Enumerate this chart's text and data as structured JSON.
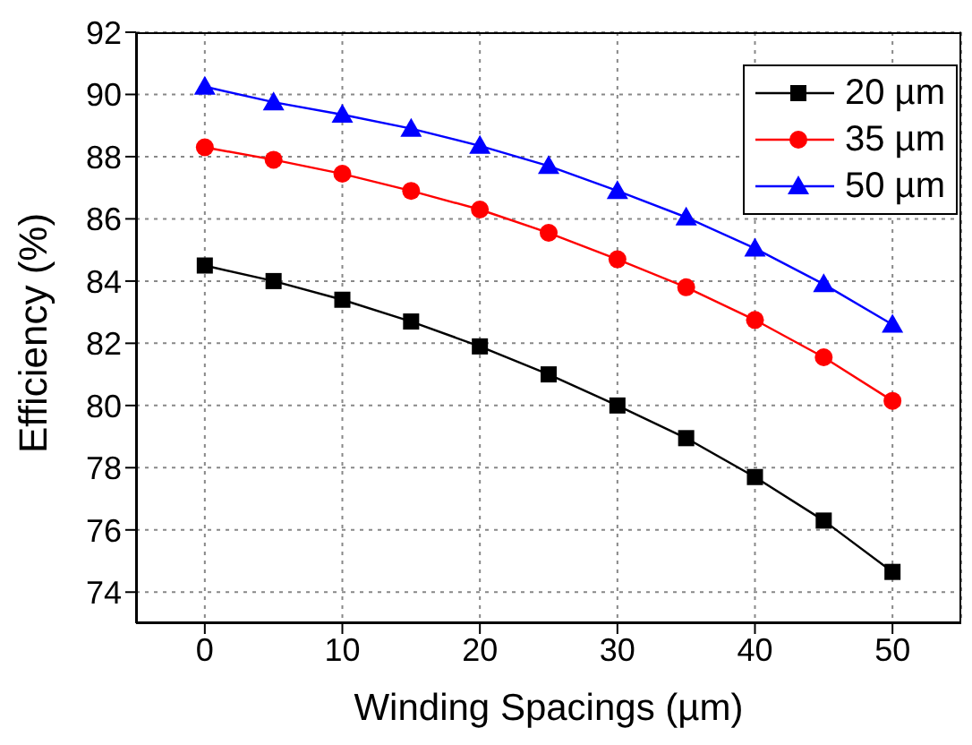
{
  "chart_data": {
    "type": "line",
    "xlabel": "Winding Spacings (µm)",
    "ylabel": "Efficiency (%)",
    "x": [
      0,
      5,
      10,
      15,
      20,
      25,
      30,
      35,
      40,
      45,
      50
    ],
    "series": [
      {
        "name": "20 µm",
        "color": "#000000",
        "marker": "square",
        "values": [
          84.5,
          84.0,
          83.4,
          82.7,
          81.9,
          81.0,
          80.0,
          78.95,
          77.7,
          76.3,
          74.65
        ]
      },
      {
        "name": "35 µm",
        "color": "#ff0000",
        "marker": "circle",
        "values": [
          88.3,
          87.9,
          87.45,
          86.9,
          86.3,
          85.55,
          84.7,
          83.8,
          82.75,
          81.55,
          80.15
        ]
      },
      {
        "name": "50 µm",
        "color": "#0000ff",
        "marker": "triangle",
        "values": [
          90.25,
          89.75,
          89.35,
          88.9,
          88.35,
          87.7,
          86.9,
          86.05,
          85.05,
          83.9,
          82.6
        ]
      }
    ],
    "xlim": [
      -5,
      55
    ],
    "xticks": [
      0,
      10,
      20,
      30,
      40,
      50
    ],
    "ylim": [
      73,
      92
    ],
    "yticks": [
      74,
      76,
      78,
      80,
      82,
      84,
      86,
      88,
      90,
      92
    ],
    "grid": true,
    "legend": "top right",
    "line_style": "solid"
  }
}
